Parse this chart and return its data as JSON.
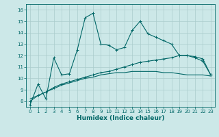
{
  "xlabel": "Humidex (Indice chaleur)",
  "bg_color": "#cce8e8",
  "grid_color": "#aacccc",
  "line_color": "#006666",
  "xlim": [
    -0.5,
    23.5
  ],
  "ylim": [
    7.5,
    16.5
  ],
  "xticks": [
    0,
    1,
    2,
    3,
    4,
    5,
    6,
    7,
    8,
    9,
    10,
    11,
    12,
    13,
    14,
    15,
    16,
    17,
    18,
    19,
    20,
    21,
    22,
    23
  ],
  "yticks": [
    8,
    9,
    10,
    11,
    12,
    13,
    14,
    15,
    16
  ],
  "line1_x": [
    0,
    1,
    2,
    3,
    4,
    5,
    6,
    7,
    8,
    9,
    10,
    11,
    12,
    13,
    14,
    15,
    16,
    17,
    18,
    19,
    20,
    21,
    22,
    23
  ],
  "line1_y": [
    7.7,
    9.5,
    8.2,
    11.8,
    10.3,
    10.4,
    12.5,
    15.3,
    15.7,
    13.0,
    12.9,
    12.5,
    12.7,
    14.2,
    15.0,
    13.9,
    13.6,
    13.3,
    13.0,
    12.0,
    12.0,
    11.8,
    11.5,
    10.3
  ],
  "line2_x": [
    0,
    1,
    2,
    3,
    4,
    5,
    6,
    7,
    8,
    9,
    10,
    11,
    12,
    13,
    14,
    15,
    16,
    17,
    18,
    19,
    20,
    21,
    22,
    23
  ],
  "line2_y": [
    8.0,
    8.5,
    8.8,
    9.2,
    9.5,
    9.7,
    9.9,
    10.1,
    10.3,
    10.5,
    10.6,
    10.8,
    11.0,
    11.2,
    11.4,
    11.5,
    11.6,
    11.7,
    11.8,
    12.0,
    12.0,
    11.9,
    11.7,
    10.3
  ],
  "line3_x": [
    0,
    1,
    2,
    3,
    4,
    5,
    6,
    7,
    8,
    9,
    10,
    11,
    12,
    13,
    14,
    15,
    16,
    17,
    18,
    19,
    20,
    21,
    22,
    23
  ],
  "line3_y": [
    8.2,
    8.5,
    8.8,
    9.1,
    9.4,
    9.6,
    9.8,
    10.0,
    10.1,
    10.3,
    10.4,
    10.5,
    10.5,
    10.6,
    10.6,
    10.6,
    10.6,
    10.5,
    10.5,
    10.4,
    10.3,
    10.3,
    10.3,
    10.2
  ],
  "xlabel_fontsize": 6.5,
  "tick_fontsize": 5.0,
  "linewidth": 0.8,
  "marker_size": 2.5
}
